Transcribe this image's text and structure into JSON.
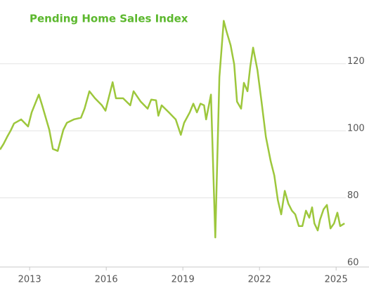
{
  "chart_data": {
    "type": "line",
    "title": "Pending Home Sales Index",
    "x": [
      2011.84,
      2011.98,
      2012.12,
      2012.26,
      2012.39,
      2012.67,
      2012.94,
      2013.08,
      2013.36,
      2013.49,
      2013.77,
      2013.91,
      2014.1,
      2014.32,
      2014.46,
      2014.73,
      2015.01,
      2015.15,
      2015.34,
      2015.56,
      2015.83,
      2015.97,
      2016.25,
      2016.38,
      2016.66,
      2016.94,
      2017.07,
      2017.35,
      2017.62,
      2017.76,
      2017.95,
      2018.04,
      2018.17,
      2018.45,
      2018.72,
      2018.92,
      2019.05,
      2019.27,
      2019.41,
      2019.55,
      2019.69,
      2019.83,
      2019.91,
      2020.1,
      2020.27,
      2020.43,
      2020.6,
      2020.71,
      2020.87,
      2021.01,
      2021.12,
      2021.28,
      2021.39,
      2021.53,
      2021.64,
      2021.75,
      2021.92,
      2022.08,
      2022.25,
      2022.44,
      2022.58,
      2022.72,
      2022.85,
      2022.99,
      2023.13,
      2023.27,
      2023.4,
      2023.54,
      2023.68,
      2023.82,
      2023.95,
      2024.06,
      2024.15,
      2024.28,
      2024.37,
      2024.51,
      2024.64,
      2024.78,
      2024.92,
      2025.05,
      2025.16,
      2025.33
    ],
    "values": [
      94.4,
      96.1,
      98.2,
      100.1,
      102.2,
      103.4,
      101.3,
      105.5,
      110.8,
      107.6,
      100.3,
      94.6,
      94.0,
      100.3,
      102.4,
      103.4,
      103.9,
      106.6,
      111.8,
      109.7,
      107.6,
      106.0,
      114.5,
      109.7,
      109.7,
      107.6,
      111.8,
      108.7,
      106.6,
      109.3,
      109.1,
      104.5,
      107.6,
      105.5,
      103.4,
      98.8,
      102.4,
      105.5,
      108.1,
      105.5,
      108.1,
      107.6,
      103.4,
      110.8,
      68.2,
      116.0,
      132.8,
      129.6,
      125.5,
      119.8,
      108.7,
      106.6,
      114.3,
      111.8,
      119.2,
      124.8,
      118.1,
      108.7,
      98.2,
      90.9,
      86.7,
      79.3,
      75.1,
      82.1,
      78.3,
      76.2,
      75.1,
      71.6,
      71.6,
      76.2,
      74.1,
      77.2,
      72.4,
      70.3,
      73.5,
      76.6,
      77.9,
      70.9,
      72.4,
      75.6,
      71.6,
      72.4
    ],
    "color": "#9dc73c",
    "xlim": [
      2011.84,
      2025.6
    ],
    "xticks": [
      2013,
      2016,
      2019,
      2022,
      2025
    ],
    "ylim": [
      59.4,
      139
    ],
    "yticks": [
      60,
      80,
      100,
      120
    ],
    "grid": true
  }
}
